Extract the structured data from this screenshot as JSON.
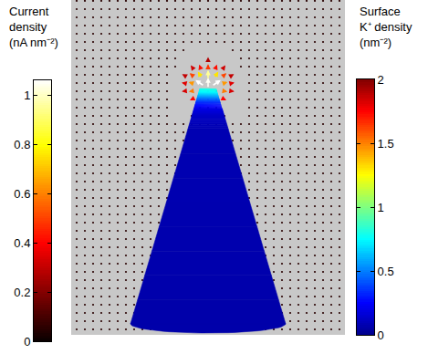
{
  "chart_data": {
    "type": "vector_field",
    "tick_labels": false,
    "xlim": [
      -150,
      150
    ],
    "ylim": [
      -270,
      97
    ],
    "current_density": {
      "title": [
        "Current",
        "density",
        "(nA nm⁻²)"
      ],
      "range": [
        0,
        1.06
      ],
      "ticks": [
        0,
        0.2,
        0.4,
        0.6,
        0.8,
        1
      ],
      "sample_x": [
        -144,
        -135,
        -126,
        -117,
        -108,
        -99,
        -90,
        -81,
        -72,
        -63,
        -54,
        -45,
        -36,
        -27,
        -18,
        -9,
        0,
        9,
        18,
        27,
        36,
        45,
        54,
        63,
        72,
        81,
        90,
        99,
        108,
        117,
        126,
        135,
        144
      ],
      "sample_y": [
        96,
        87,
        78,
        69,
        60,
        51,
        42,
        33,
        24,
        15,
        6,
        -3,
        -12,
        -21,
        -30,
        -39,
        -48,
        -57,
        -66,
        -75,
        -84,
        -93,
        -102,
        -111,
        -120,
        -129,
        -138,
        -147,
        -156,
        -165,
        -174,
        -183,
        -192,
        -201,
        -210,
        -219,
        -228,
        -237,
        -246,
        -255,
        -264
      ],
      "background_value": 0.05,
      "arrows": {
        "x": [
          -18,
          -9,
          0,
          9,
          18,
          -27,
          -18,
          -9,
          0,
          9,
          18,
          27,
          -27,
          -18,
          -9,
          0,
          9,
          18,
          27,
          -36,
          -27,
          -18,
          -9,
          0,
          9,
          18,
          27,
          36,
          -36,
          -27,
          -18,
          -9,
          0,
          9,
          18,
          27,
          36,
          -36,
          -27,
          -18,
          18,
          27,
          36,
          -36,
          -27,
          -18,
          18,
          27,
          36,
          -36,
          -27,
          -18,
          18,
          27,
          36,
          -36,
          -27,
          27,
          36
        ],
        "y": [
          42,
          42,
          42,
          42,
          42,
          33,
          33,
          33,
          33,
          33,
          33,
          33,
          24,
          24,
          24,
          24,
          24,
          24,
          24,
          15,
          15,
          15,
          15,
          15,
          15,
          15,
          15,
          15,
          6,
          6,
          6,
          6,
          6,
          6,
          6,
          6,
          6,
          -3,
          -3,
          -3,
          -3,
          -3,
          -3,
          -12,
          -12,
          -12,
          -12,
          -12,
          -12,
          -21,
          -21,
          -21,
          -21,
          -21,
          -21,
          -30,
          -30,
          -30,
          -30
        ],
        "u": [
          -0.06,
          -0.04,
          0,
          0.04,
          0.06,
          -0.09,
          -0.09,
          -0.07,
          0,
          0.07,
          0.09,
          0.09,
          -0.17,
          -0.19,
          -0.15,
          0,
          0.15,
          0.19,
          0.17,
          -0.17,
          -0.26,
          -0.39,
          -0.4,
          0,
          0.4,
          0.39,
          0.26,
          0.17,
          -0.2,
          -0.34,
          -0.6,
          -0.88,
          0,
          0.88,
          0.6,
          0.34,
          0.2,
          -0.19,
          -0.33,
          -0.58,
          0.58,
          0.33,
          0.19,
          -0.16,
          -0.25,
          -0.36,
          0.36,
          0.25,
          0.16,
          -0.12,
          -0.17,
          -0.2,
          0.2,
          0.17,
          0.12,
          -0.08,
          -0.1,
          0.1,
          0.08
        ],
        "v": [
          0.12,
          0.15,
          0.16,
          0.15,
          0.12,
          0.12,
          0.18,
          0.24,
          0.27,
          0.24,
          0.18,
          0.12,
          0.14,
          0.26,
          0.39,
          0.48,
          0.39,
          0.26,
          0.14,
          0.07,
          0.15,
          0.32,
          0.64,
          0.95,
          0.64,
          0.32,
          0.15,
          0.07,
          0.03,
          0.08,
          0.2,
          0.6,
          1.05,
          0.6,
          0.2,
          0.08,
          0.03,
          -0.02,
          -0.04,
          -0.1,
          -0.1,
          -0.04,
          -0.02,
          -0.05,
          -0.1,
          -0.18,
          -0.18,
          -0.1,
          -0.05,
          -0.07,
          -0.1,
          -0.15,
          -0.15,
          -0.1,
          -0.07,
          -0.06,
          -0.08,
          -0.08,
          -0.06
        ]
      }
    },
    "surface_density": {
      "title": [
        "Surface",
        "K⁺ density",
        "(nm⁻²)"
      ],
      "range": [
        0,
        2
      ],
      "ticks": [
        0,
        0.5,
        1,
        1.5,
        2
      ],
      "cone": {
        "apex_y": 0,
        "base_y": -258,
        "tip_radius": 9,
        "base_radius": 85,
        "base_depth": 10
      },
      "profile": {
        "y": [
          0,
          -4,
          -8,
          -12,
          -16,
          -22,
          -30,
          -45,
          -258
        ],
        "values": [
          0.8,
          0.75,
          0.6,
          0.45,
          0.32,
          0.2,
          0.12,
          0.08,
          0.06
        ]
      }
    }
  }
}
